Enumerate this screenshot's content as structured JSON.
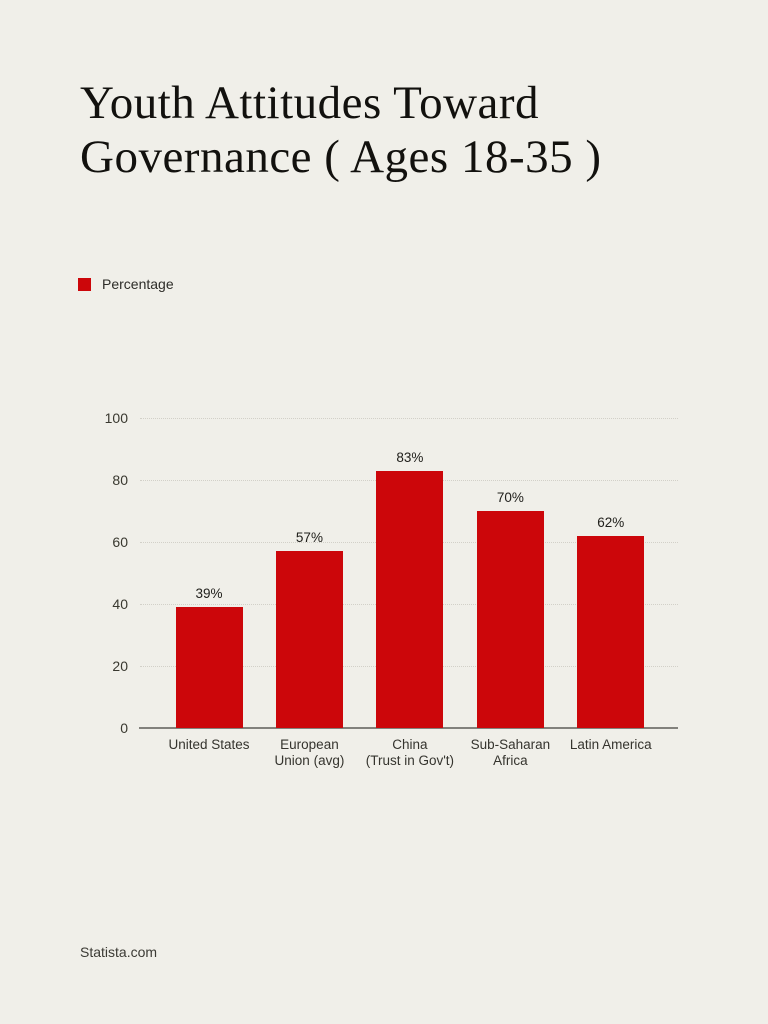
{
  "page": {
    "background": "#F0EFE9",
    "title": "Youth Attitudes Toward Governance ( Ages 18-35 )",
    "source": "Statista.com"
  },
  "legend": {
    "label": "Percentage",
    "swatch_color": "#CC060A"
  },
  "chart_data": {
    "type": "bar",
    "title": "Youth Attitudes Toward Governance ( Ages 18-35 )",
    "categories": [
      "United States",
      "European Union (avg)",
      "China (Trust in Gov't)",
      "Sub-Saharan Africa",
      "Latin America"
    ],
    "category_label_lines": [
      [
        "United States"
      ],
      [
        "European",
        "Union (avg)"
      ],
      [
        "China",
        "(Trust in Gov't)"
      ],
      [
        "Sub-Saharan",
        "Africa"
      ],
      [
        "Latin America"
      ]
    ],
    "series": [
      {
        "name": "Percentage",
        "values": [
          39,
          57,
          83,
          70,
          62
        ]
      }
    ],
    "data_labels": [
      "39%",
      "57%",
      "83%",
      "70%",
      "62%"
    ],
    "bar_color": "#CC060A",
    "xlabel": "",
    "ylabel": "",
    "ylim": [
      0,
      100
    ],
    "yticks": [
      0,
      20,
      40,
      60,
      80,
      100
    ],
    "grid": "horizontal-dotted",
    "gridline_color": "#d2d0c8",
    "axis_line_color": "#82817c",
    "legend_position": "top-left",
    "source": "Statista.com"
  }
}
